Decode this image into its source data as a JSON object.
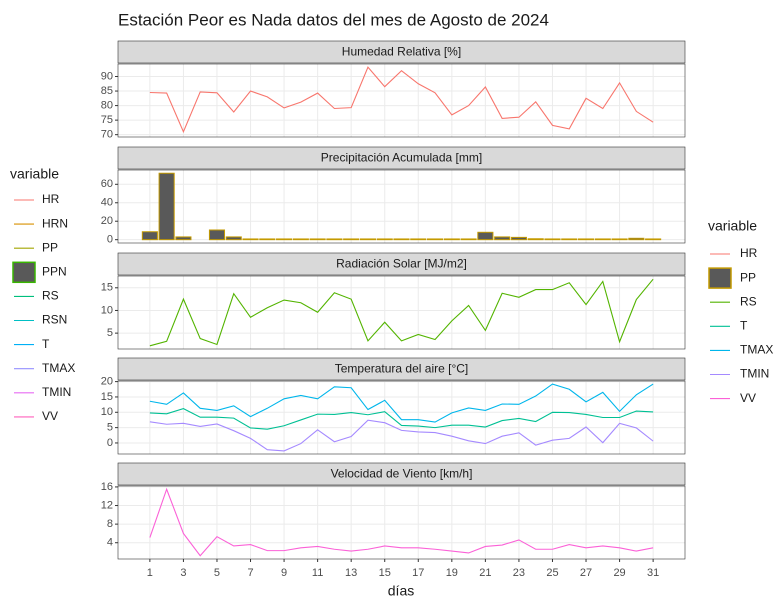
{
  "title": "Estación Peor es Nada datos del mes de Agosto de 2024",
  "xlabel": "días",
  "legend_title": "variable",
  "legend_left": [
    {
      "name": "HR",
      "color": "#F8766D",
      "key": "line"
    },
    {
      "name": "HRN",
      "color": "#D89000",
      "key": "line"
    },
    {
      "name": "PP",
      "color": "#A3A500",
      "key": "line"
    },
    {
      "name": "PPN",
      "color": "#39B600",
      "fill": "#595959",
      "key": "box"
    },
    {
      "name": "RS",
      "color": "#00BF7D",
      "key": "line"
    },
    {
      "name": "RSN",
      "color": "#00BFC4",
      "key": "line"
    },
    {
      "name": "T",
      "color": "#00B0F6",
      "key": "line"
    },
    {
      "name": "TMAX",
      "color": "#9590FF",
      "key": "line"
    },
    {
      "name": "TMIN",
      "color": "#E76BF3",
      "key": "line"
    },
    {
      "name": "VV",
      "color": "#FF62BC",
      "key": "line"
    }
  ],
  "chart_data": [
    {
      "type": "line",
      "title": "Humedad Relativa [%]",
      "grid": true,
      "x": [
        1,
        2,
        3,
        4,
        5,
        6,
        7,
        8,
        9,
        10,
        11,
        12,
        13,
        14,
        15,
        16,
        17,
        18,
        19,
        20,
        21,
        22,
        23,
        24,
        25,
        26,
        27,
        28,
        29,
        30,
        31
      ],
      "xlim": [
        -0.9,
        32.9
      ],
      "xticks": [
        1,
        3,
        5,
        7,
        9,
        11,
        13,
        15,
        17,
        19,
        21,
        23,
        25,
        27,
        29,
        31
      ],
      "ylim": [
        69.2,
        94.3
      ],
      "yticks": [
        70,
        75,
        80,
        85,
        90
      ],
      "series": [
        {
          "name": "HR",
          "color": "#F8766D",
          "values": [
            84.5,
            84.3,
            71,
            84.7,
            84.4,
            77.8,
            85,
            83,
            79.2,
            81.2,
            84.3,
            79,
            79.3,
            93.2,
            86.5,
            92,
            87.5,
            84.4,
            76.8,
            80,
            86.4,
            75.6,
            76,
            81.3,
            73.2,
            72,
            82.5,
            79,
            87.8,
            78,
            74.3
          ]
        }
      ]
    },
    {
      "type": "bar",
      "title": "Precipitación Acumulada [mm]",
      "grid": true,
      "x": [
        1,
        2,
        3,
        4,
        5,
        6,
        7,
        8,
        9,
        10,
        11,
        12,
        13,
        14,
        15,
        16,
        17,
        18,
        19,
        20,
        21,
        22,
        23,
        24,
        25,
        26,
        27,
        28,
        29,
        30,
        31
      ],
      "xlim": [
        -0.9,
        32.9
      ],
      "xticks": [
        1,
        3,
        5,
        7,
        9,
        11,
        13,
        15,
        17,
        19,
        21,
        23,
        25,
        27,
        29,
        31
      ],
      "ylim": [
        -3.6,
        75.5
      ],
      "yticks": [
        0,
        20,
        40,
        60
      ],
      "series": [
        {
          "name": "PP",
          "color": "#C49A00",
          "fill": "#595959",
          "values": [
            8.6,
            72,
            3,
            0,
            10.5,
            3,
            0.8,
            0.8,
            0.8,
            0.8,
            0.8,
            0.8,
            0.8,
            0.8,
            0.8,
            0.8,
            0.8,
            0.8,
            0.8,
            0.8,
            8,
            3,
            2.5,
            1,
            0.8,
            0.8,
            0.8,
            0.8,
            0.8,
            1.5,
            0.8
          ]
        }
      ]
    },
    {
      "type": "line",
      "title": "Radiación Solar [MJ/m2]",
      "grid": true,
      "x": [
        1,
        2,
        3,
        4,
        5,
        6,
        7,
        8,
        9,
        10,
        11,
        12,
        13,
        14,
        15,
        16,
        17,
        18,
        19,
        20,
        21,
        22,
        23,
        24,
        25,
        26,
        27,
        28,
        29,
        30,
        31
      ],
      "xlim": [
        -0.9,
        32.9
      ],
      "xticks": [
        1,
        3,
        5,
        7,
        9,
        11,
        13,
        15,
        17,
        19,
        21,
        23,
        25,
        27,
        29,
        31
      ],
      "ylim": [
        1.5,
        17.6
      ],
      "yticks": [
        5,
        10,
        15
      ],
      "series": [
        {
          "name": "RS",
          "color": "#53B400",
          "values": [
            2.2,
            3.2,
            12.5,
            3.8,
            2.5,
            13.7,
            8.5,
            10.6,
            12.3,
            11.7,
            9.6,
            13.9,
            12.5,
            3.3,
            7.4,
            3.3,
            4.7,
            3.6,
            7.7,
            11.1,
            5.6,
            13.8,
            12.9,
            14.6,
            14.6,
            16.1,
            11.3,
            16.4,
            3.1,
            12.4,
            16.9
          ]
        }
      ]
    },
    {
      "type": "line",
      "title": "Temperatura del aire [°C]",
      "grid": true,
      "x": [
        1,
        2,
        3,
        4,
        5,
        6,
        7,
        8,
        9,
        10,
        11,
        12,
        13,
        14,
        15,
        16,
        17,
        18,
        19,
        20,
        21,
        22,
        23,
        24,
        25,
        26,
        27,
        28,
        29,
        30,
        31
      ],
      "xlim": [
        -0.9,
        32.9
      ],
      "xticks": [
        1,
        3,
        5,
        7,
        9,
        11,
        13,
        15,
        17,
        19,
        21,
        23,
        25,
        27,
        29,
        31
      ],
      "ylim": [
        -3.6,
        20.2
      ],
      "yticks": [
        0,
        5,
        10,
        15,
        20
      ],
      "series": [
        {
          "name": "T",
          "color": "#00C094",
          "values": [
            9.8,
            9.5,
            11.2,
            8.4,
            8.4,
            8.1,
            4.9,
            4.5,
            5.6,
            7.5,
            9.4,
            9.3,
            9.9,
            9.2,
            10.2,
            5.7,
            5.5,
            5,
            5.8,
            5.8,
            5.2,
            7.3,
            8,
            7,
            10,
            9.9,
            9.3,
            8.3,
            8.3,
            10.4,
            10.1
          ]
        },
        {
          "name": "TMAX",
          "color": "#00B6EB",
          "values": [
            13.6,
            12.6,
            16.3,
            11.3,
            10.6,
            12.1,
            8.6,
            11.3,
            14.4,
            15.5,
            14.4,
            18.3,
            18,
            10.9,
            13.9,
            7.6,
            7.6,
            6.8,
            9.8,
            11.4,
            10.6,
            12.7,
            12.6,
            15.3,
            19.2,
            17.5,
            13.4,
            16.5,
            10.3,
            15.7,
            19.2
          ]
        },
        {
          "name": "TMIN",
          "color": "#A58AFF",
          "values": [
            6.9,
            6.1,
            6.4,
            5.4,
            6.2,
            4,
            1.5,
            -2.2,
            -2.6,
            -0.2,
            4.3,
            0.4,
            2.1,
            7.4,
            6.6,
            4.1,
            3.6,
            3.4,
            2.2,
            0.7,
            -0.2,
            2.2,
            3.3,
            -0.7,
            0.9,
            1.5,
            5.2,
            0.1,
            6.4,
            4.9,
            0.6
          ]
        }
      ]
    },
    {
      "type": "line",
      "title": "Velocidad de Viento [km/h]",
      "grid": true,
      "x": [
        1,
        2,
        3,
        4,
        5,
        6,
        7,
        8,
        9,
        10,
        11,
        12,
        13,
        14,
        15,
        16,
        17,
        18,
        19,
        20,
        21,
        22,
        23,
        24,
        25,
        26,
        27,
        28,
        29,
        30,
        31
      ],
      "xlim": [
        -0.9,
        32.9
      ],
      "xticks": [
        1,
        3,
        5,
        7,
        9,
        11,
        13,
        15,
        17,
        19,
        21,
        23,
        25,
        27,
        29,
        31
      ],
      "ylim": [
        0.5,
        16.2
      ],
      "yticks": [
        4,
        8,
        12,
        16
      ],
      "series": [
        {
          "name": "VV",
          "color": "#FB61D7",
          "values": [
            5.1,
            15.5,
            6,
            1.2,
            5.3,
            3.3,
            3.6,
            2.3,
            2.3,
            2.9,
            3.2,
            2.6,
            2.2,
            2.6,
            3.3,
            2.9,
            2.9,
            2.6,
            2.2,
            1.8,
            3.2,
            3.5,
            4.6,
            2.6,
            2.6,
            3.6,
            2.9,
            3.3,
            2.9,
            2.2,
            2.9
          ]
        }
      ]
    }
  ]
}
